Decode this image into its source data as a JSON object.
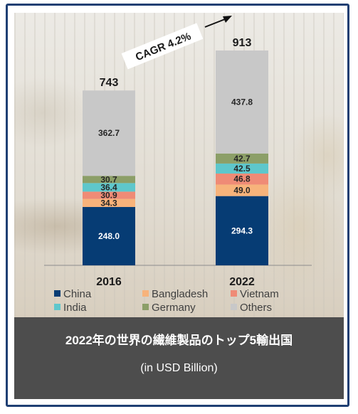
{
  "caption": {
    "title": "2022年の世界の繊維製品のトップ5輸出国",
    "subtitle": "(in USD Billion)"
  },
  "chart_data": {
    "type": "bar",
    "stacked": true,
    "categories": [
      "2016",
      "2022"
    ],
    "totals": [
      "743",
      "913"
    ],
    "annotation": "CAGR 4.2%",
    "series": [
      {
        "name": "China",
        "values": [
          248.0,
          294.3
        ],
        "labels": [
          "248.0",
          "294.3"
        ],
        "color": "#063c74",
        "label_color": "#ffffff"
      },
      {
        "name": "Bangladesh",
        "values": [
          34.3,
          49.0
        ],
        "labels": [
          "34.3",
          "49.0"
        ],
        "color": "#f7b37b",
        "label_color": "#262626"
      },
      {
        "name": "Vietnam",
        "values": [
          30.9,
          46.8
        ],
        "labels": [
          "30.9",
          "46.8"
        ],
        "color": "#ef8b76",
        "label_color": "#262626"
      },
      {
        "name": "India",
        "values": [
          36.4,
          42.5
        ],
        "labels": [
          "36.4",
          "42.5"
        ],
        "color": "#5ec7cc",
        "label_color": "#262626"
      },
      {
        "name": "Germany",
        "values": [
          30.7,
          42.7
        ],
        "labels": [
          "30.7",
          "42.7"
        ],
        "color": "#8c9f68",
        "label_color": "#262626"
      },
      {
        "name": "Others",
        "values": [
          362.7,
          437.8
        ],
        "labels": [
          "362.7",
          "437.8"
        ],
        "color": "#c8c8c8",
        "label_color": "#262626"
      }
    ],
    "legend": "bottom",
    "grid": false
  }
}
